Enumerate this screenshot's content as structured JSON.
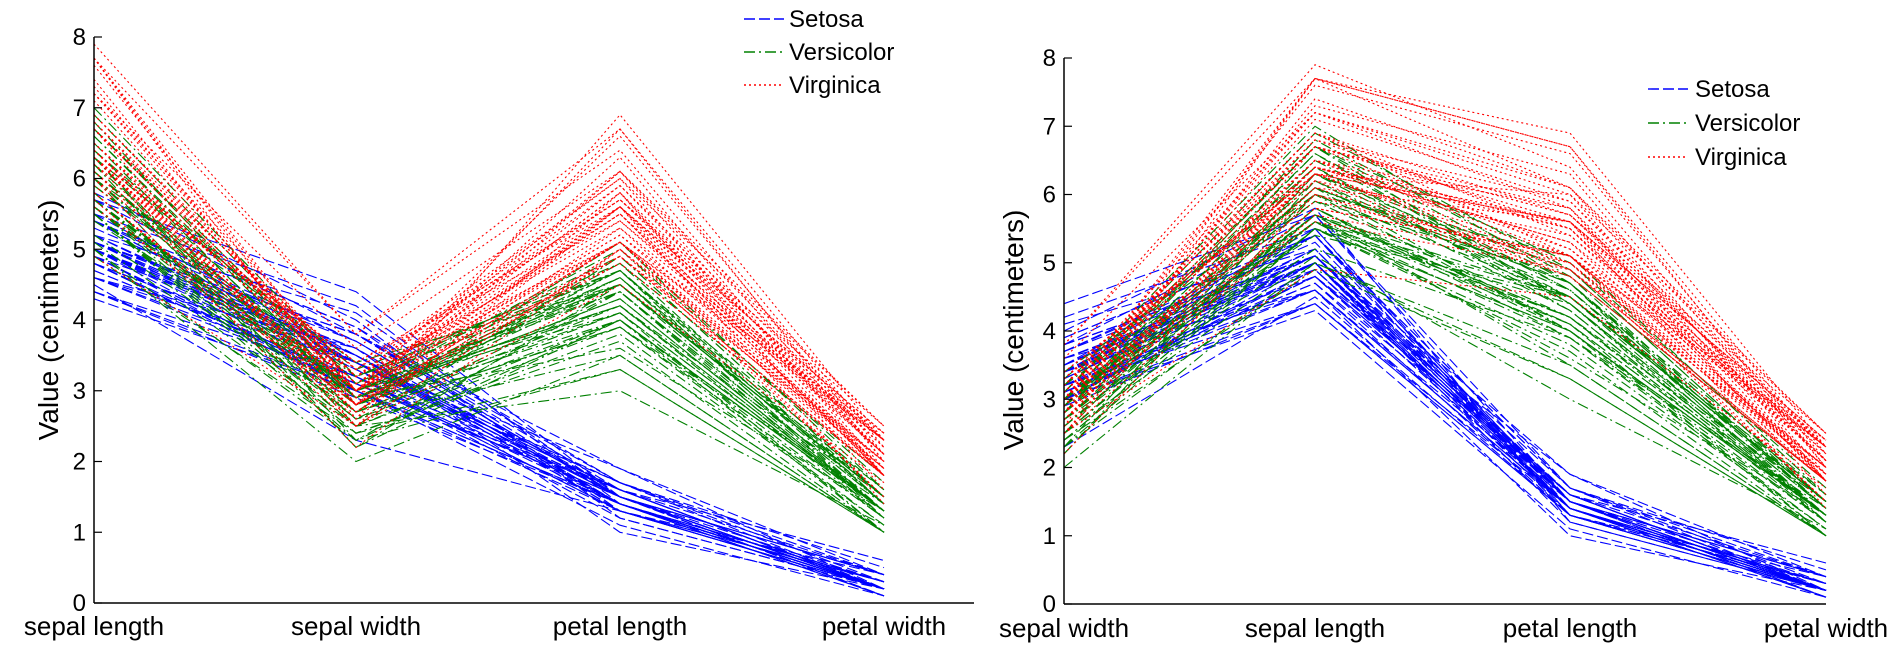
{
  "colors": {
    "setosa": "#0000ff",
    "versicolor": "#008000",
    "virginica": "#ff0000"
  },
  "chart_data": [
    {
      "type": "line",
      "subtype": "parallel-coordinates",
      "categories": [
        "sepal length",
        "sepal width",
        "petal length",
        "petal width"
      ],
      "ylabel": "Value (centimeters)",
      "ylim": [
        0,
        8
      ],
      "yticks": [
        0,
        1,
        2,
        3,
        4,
        5,
        6,
        7,
        8
      ],
      "legend_position": "top-right",
      "series": [
        {
          "name": "Setosa",
          "style": "dashed",
          "color": "#0000ff",
          "values": [
            [
              5.1,
              3.5,
              1.4,
              0.2
            ],
            [
              4.9,
              3.0,
              1.4,
              0.2
            ],
            [
              4.7,
              3.2,
              1.3,
              0.2
            ],
            [
              4.6,
              3.1,
              1.5,
              0.2
            ],
            [
              5.0,
              3.6,
              1.4,
              0.2
            ],
            [
              5.4,
              3.9,
              1.7,
              0.4
            ],
            [
              4.6,
              3.4,
              1.4,
              0.3
            ],
            [
              5.0,
              3.4,
              1.5,
              0.2
            ],
            [
              4.4,
              2.9,
              1.4,
              0.2
            ],
            [
              4.9,
              3.1,
              1.5,
              0.1
            ],
            [
              5.4,
              3.7,
              1.5,
              0.2
            ],
            [
              4.8,
              3.4,
              1.6,
              0.2
            ],
            [
              4.8,
              3.0,
              1.4,
              0.1
            ],
            [
              4.3,
              3.0,
              1.1,
              0.1
            ],
            [
              5.8,
              4.0,
              1.2,
              0.2
            ],
            [
              5.7,
              4.4,
              1.5,
              0.4
            ],
            [
              5.4,
              3.9,
              1.3,
              0.4
            ],
            [
              5.1,
              3.5,
              1.4,
              0.3
            ],
            [
              5.7,
              3.8,
              1.7,
              0.3
            ],
            [
              5.1,
              3.8,
              1.5,
              0.3
            ],
            [
              5.4,
              3.4,
              1.7,
              0.2
            ],
            [
              5.1,
              3.7,
              1.5,
              0.4
            ],
            [
              4.6,
              3.6,
              1.0,
              0.2
            ],
            [
              5.1,
              3.3,
              1.7,
              0.5
            ],
            [
              4.8,
              3.4,
              1.9,
              0.2
            ],
            [
              5.0,
              3.0,
              1.6,
              0.2
            ],
            [
              5.0,
              3.4,
              1.6,
              0.4
            ],
            [
              5.2,
              3.5,
              1.5,
              0.2
            ],
            [
              5.2,
              3.4,
              1.4,
              0.2
            ],
            [
              4.7,
              3.2,
              1.6,
              0.2
            ],
            [
              4.8,
              3.1,
              1.6,
              0.2
            ],
            [
              5.4,
              3.4,
              1.5,
              0.4
            ],
            [
              5.2,
              4.1,
              1.5,
              0.1
            ],
            [
              5.5,
              4.2,
              1.4,
              0.2
            ],
            [
              4.9,
              3.1,
              1.5,
              0.2
            ],
            [
              5.0,
              3.2,
              1.2,
              0.2
            ],
            [
              5.5,
              3.5,
              1.3,
              0.2
            ],
            [
              4.9,
              3.6,
              1.4,
              0.1
            ],
            [
              4.4,
              3.0,
              1.3,
              0.2
            ],
            [
              5.1,
              3.4,
              1.5,
              0.2
            ],
            [
              5.0,
              3.5,
              1.3,
              0.3
            ],
            [
              4.5,
              2.3,
              1.3,
              0.3
            ],
            [
              4.4,
              3.2,
              1.3,
              0.2
            ],
            [
              5.0,
              3.5,
              1.6,
              0.6
            ],
            [
              5.1,
              3.8,
              1.9,
              0.4
            ],
            [
              4.8,
              3.0,
              1.4,
              0.3
            ],
            [
              5.1,
              3.8,
              1.6,
              0.2
            ],
            [
              4.6,
              3.2,
              1.4,
              0.2
            ],
            [
              5.3,
              3.7,
              1.5,
              0.2
            ],
            [
              5.0,
              3.3,
              1.4,
              0.2
            ]
          ]
        },
        {
          "name": "Versicolor",
          "style": "dash-dot",
          "color": "#008000",
          "values": [
            [
              7.0,
              3.2,
              4.7,
              1.4
            ],
            [
              6.4,
              3.2,
              4.5,
              1.5
            ],
            [
              6.9,
              3.1,
              4.9,
              1.5
            ],
            [
              5.5,
              2.3,
              4.0,
              1.3
            ],
            [
              6.5,
              2.8,
              4.6,
              1.5
            ],
            [
              5.7,
              2.8,
              4.5,
              1.3
            ],
            [
              6.3,
              3.3,
              4.7,
              1.6
            ],
            [
              4.9,
              2.4,
              3.3,
              1.0
            ],
            [
              6.6,
              2.9,
              4.6,
              1.3
            ],
            [
              5.2,
              2.7,
              3.9,
              1.4
            ],
            [
              5.0,
              2.0,
              3.5,
              1.0
            ],
            [
              5.9,
              3.0,
              4.2,
              1.5
            ],
            [
              6.0,
              2.2,
              4.0,
              1.0
            ],
            [
              6.1,
              2.9,
              4.7,
              1.4
            ],
            [
              5.6,
              2.9,
              3.6,
              1.3
            ],
            [
              6.7,
              3.1,
              4.4,
              1.4
            ],
            [
              5.6,
              3.0,
              4.5,
              1.5
            ],
            [
              5.8,
              2.7,
              4.1,
              1.0
            ],
            [
              6.2,
              2.2,
              4.5,
              1.5
            ],
            [
              5.6,
              2.5,
              3.9,
              1.1
            ],
            [
              5.9,
              3.2,
              4.8,
              1.8
            ],
            [
              6.1,
              2.8,
              4.0,
              1.3
            ],
            [
              6.3,
              2.5,
              4.9,
              1.5
            ],
            [
              6.1,
              2.8,
              4.7,
              1.2
            ],
            [
              6.4,
              2.9,
              4.3,
              1.3
            ],
            [
              6.6,
              3.0,
              4.4,
              1.4
            ],
            [
              6.8,
              2.8,
              4.8,
              1.4
            ],
            [
              6.7,
              3.0,
              5.0,
              1.7
            ],
            [
              6.0,
              2.9,
              4.5,
              1.5
            ],
            [
              5.7,
              2.6,
              3.5,
              1.0
            ],
            [
              5.5,
              2.4,
              3.8,
              1.1
            ],
            [
              5.5,
              2.4,
              3.7,
              1.0
            ],
            [
              5.8,
              2.7,
              3.9,
              1.2
            ],
            [
              6.0,
              2.7,
              5.1,
              1.6
            ],
            [
              5.4,
              3.0,
              4.5,
              1.5
            ],
            [
              6.0,
              3.4,
              4.5,
              1.6
            ],
            [
              6.7,
              3.1,
              4.7,
              1.5
            ],
            [
              6.3,
              2.3,
              4.4,
              1.3
            ],
            [
              5.6,
              3.0,
              4.1,
              1.3
            ],
            [
              5.5,
              2.5,
              4.0,
              1.3
            ],
            [
              5.5,
              2.6,
              4.4,
              1.2
            ],
            [
              6.1,
              3.0,
              4.6,
              1.4
            ],
            [
              5.8,
              2.6,
              4.0,
              1.2
            ],
            [
              5.0,
              2.3,
              3.3,
              1.0
            ],
            [
              5.6,
              2.7,
              4.2,
              1.3
            ],
            [
              5.7,
              3.0,
              4.2,
              1.2
            ],
            [
              5.7,
              2.9,
              4.2,
              1.3
            ],
            [
              6.2,
              2.9,
              4.3,
              1.3
            ],
            [
              5.1,
              2.5,
              3.0,
              1.1
            ],
            [
              5.7,
              2.8,
              4.1,
              1.3
            ]
          ]
        },
        {
          "name": "Virginica",
          "style": "dotted",
          "color": "#ff0000",
          "values": [
            [
              6.3,
              3.3,
              6.0,
              2.5
            ],
            [
              5.8,
              2.7,
              5.1,
              1.9
            ],
            [
              7.1,
              3.0,
              5.9,
              2.1
            ],
            [
              6.3,
              2.9,
              5.6,
              1.8
            ],
            [
              6.5,
              3.0,
              5.8,
              2.2
            ],
            [
              7.6,
              3.0,
              6.6,
              2.1
            ],
            [
              4.9,
              2.5,
              4.5,
              1.7
            ],
            [
              7.3,
              2.9,
              6.3,
              1.8
            ],
            [
              6.7,
              2.5,
              5.8,
              1.8
            ],
            [
              7.2,
              3.6,
              6.1,
              2.5
            ],
            [
              6.5,
              3.2,
              5.1,
              2.0
            ],
            [
              6.4,
              2.7,
              5.3,
              1.9
            ],
            [
              6.8,
              3.0,
              5.5,
              2.1
            ],
            [
              5.7,
              2.5,
              5.0,
              2.0
            ],
            [
              5.8,
              2.8,
              5.1,
              2.4
            ],
            [
              6.4,
              3.2,
              5.3,
              2.3
            ],
            [
              6.5,
              3.0,
              5.5,
              1.8
            ],
            [
              7.7,
              3.8,
              6.7,
              2.2
            ],
            [
              7.7,
              2.6,
              6.9,
              2.3
            ],
            [
              6.0,
              2.2,
              5.0,
              1.5
            ],
            [
              6.9,
              3.2,
              5.7,
              2.3
            ],
            [
              5.6,
              2.8,
              4.9,
              2.0
            ],
            [
              7.7,
              2.8,
              6.7,
              2.0
            ],
            [
              6.3,
              2.7,
              4.9,
              1.8
            ],
            [
              6.7,
              3.3,
              5.7,
              2.1
            ],
            [
              7.2,
              3.2,
              6.0,
              1.8
            ],
            [
              6.2,
              2.8,
              4.8,
              1.8
            ],
            [
              6.1,
              3.0,
              4.9,
              1.8
            ],
            [
              6.4,
              2.8,
              5.6,
              2.1
            ],
            [
              7.2,
              3.0,
              5.8,
              1.6
            ],
            [
              7.4,
              2.8,
              6.1,
              1.9
            ],
            [
              7.9,
              3.8,
              6.4,
              2.0
            ],
            [
              6.4,
              2.8,
              5.6,
              2.2
            ],
            [
              6.3,
              2.8,
              5.1,
              1.5
            ],
            [
              6.1,
              2.6,
              5.6,
              1.4
            ],
            [
              7.7,
              3.0,
              6.1,
              2.3
            ],
            [
              6.3,
              3.4,
              5.6,
              2.4
            ],
            [
              6.4,
              3.1,
              5.5,
              1.8
            ],
            [
              6.0,
              3.0,
              4.8,
              1.8
            ],
            [
              6.9,
              3.1,
              5.4,
              2.1
            ],
            [
              6.7,
              3.1,
              5.6,
              2.4
            ],
            [
              6.9,
              3.1,
              5.1,
              2.3
            ],
            [
              5.8,
              2.7,
              5.1,
              1.9
            ],
            [
              6.8,
              3.2,
              5.9,
              2.3
            ],
            [
              6.7,
              3.3,
              5.7,
              2.5
            ],
            [
              6.7,
              3.0,
              5.2,
              2.3
            ],
            [
              6.3,
              2.5,
              5.0,
              1.9
            ],
            [
              6.5,
              3.0,
              5.2,
              2.0
            ],
            [
              6.2,
              3.4,
              5.4,
              2.3
            ],
            [
              5.9,
              3.0,
              5.1,
              1.8
            ]
          ]
        }
      ]
    },
    {
      "type": "line",
      "subtype": "parallel-coordinates",
      "categories": [
        "sepal width",
        "sepal length",
        "petal length",
        "petal width"
      ],
      "axis_order_from_panel_1": [
        1,
        0,
        2,
        3
      ],
      "ylabel": "Value (centimeters)",
      "ylim": [
        0,
        8
      ],
      "yticks": [
        0,
        1,
        2,
        3,
        4,
        5,
        6,
        7,
        8
      ],
      "legend_position": "top-right",
      "legend": [
        "Setosa",
        "Versicolor",
        "Virginica"
      ]
    }
  ]
}
